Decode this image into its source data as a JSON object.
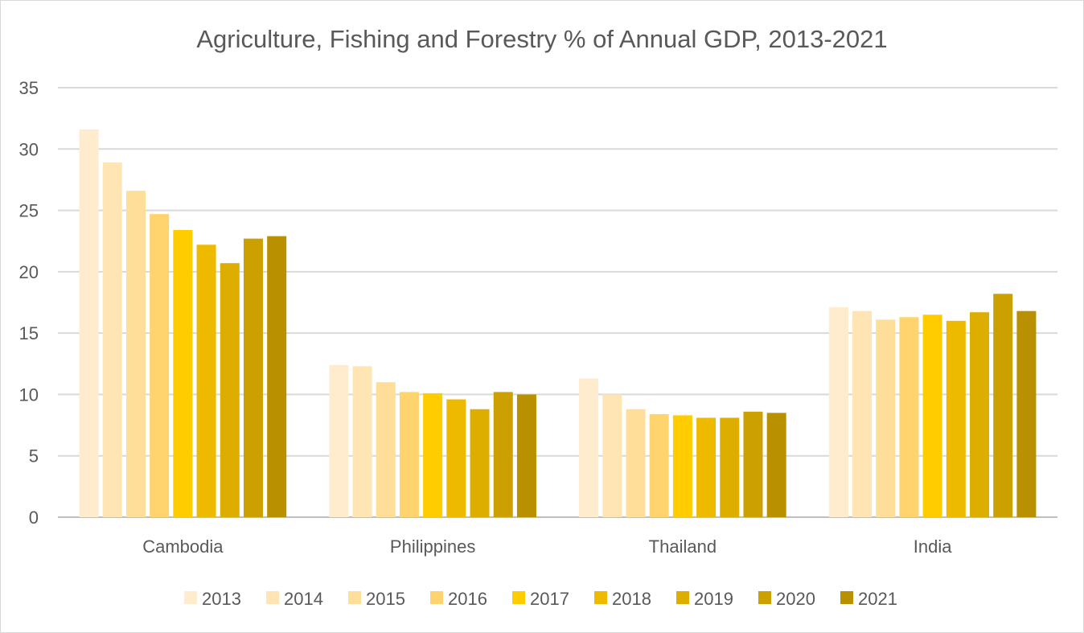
{
  "chart_data": {
    "type": "bar",
    "title": "Agriculture, Fishing and Forestry % of Annual GDP, 2013-2021",
    "xlabel": "",
    "ylabel": "",
    "categories": [
      "Cambodia",
      "Philippines",
      "Thailand",
      "India"
    ],
    "ylim": [
      0,
      35
    ],
    "yticks": [
      0,
      5,
      10,
      15,
      20,
      25,
      30,
      35
    ],
    "grid": true,
    "legend_position": "bottom",
    "series": [
      {
        "name": "2013",
        "color": "#FFEBCD",
        "values": [
          31.6,
          12.4,
          11.3,
          17.1
        ]
      },
      {
        "name": "2014",
        "color": "#FFE5B4",
        "values": [
          28.9,
          12.3,
          10.0,
          16.8
        ]
      },
      {
        "name": "2015",
        "color": "#FFDE99",
        "values": [
          26.6,
          11.0,
          8.8,
          16.1
        ]
      },
      {
        "name": "2016",
        "color": "#FFD36E",
        "values": [
          24.7,
          10.2,
          8.4,
          16.3
        ]
      },
      {
        "name": "2017",
        "color": "#FFCC00",
        "values": [
          23.4,
          10.1,
          8.3,
          16.5
        ]
      },
      {
        "name": "2018",
        "color": "#EEBA00",
        "values": [
          22.2,
          9.6,
          8.1,
          16.0
        ]
      },
      {
        "name": "2019",
        "color": "#DDAD00",
        "values": [
          20.7,
          8.8,
          8.1,
          16.7
        ]
      },
      {
        "name": "2020",
        "color": "#CCA000",
        "values": [
          22.7,
          10.2,
          8.6,
          18.2
        ]
      },
      {
        "name": "2021",
        "color": "#B89000",
        "values": [
          22.9,
          10.0,
          8.5,
          16.8
        ]
      }
    ]
  }
}
